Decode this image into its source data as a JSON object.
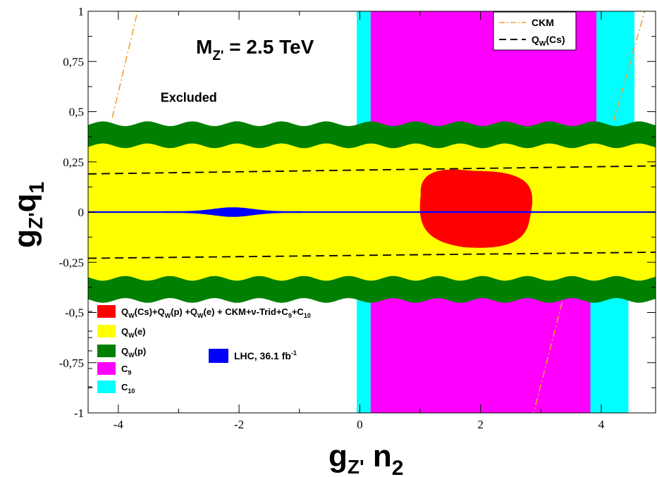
{
  "chart_data": {
    "type": "area",
    "title": "M_Z' = 2.5 TeV",
    "title_parts": {
      "main": "M",
      "sub": "Z'",
      "rest": " = 2.5 TeV"
    },
    "xlabel_parts": {
      "main": "g",
      "sub": "Z'",
      "rest": " n",
      "rest_sub": "2"
    },
    "ylabel_parts": {
      "main": "g",
      "sub": "Z'",
      "rest": "q",
      "rest_sub": "1"
    },
    "xlim": [
      -4.5,
      4.9
    ],
    "ylim": [
      -1,
      1
    ],
    "x_ticks": [
      {
        "v": -4,
        "label": "-4"
      },
      {
        "v": -2,
        "label": "-2"
      },
      {
        "v": 0,
        "label": "0"
      },
      {
        "v": 2,
        "label": "2"
      },
      {
        "v": 4,
        "label": "4"
      }
    ],
    "y_ticks": [
      {
        "v": 1,
        "label": "1"
      },
      {
        "v": 0.75,
        "label": "0,75"
      },
      {
        "v": 0.5,
        "label": "0,5"
      },
      {
        "v": 0.25,
        "label": "0,25"
      },
      {
        "v": 0,
        "label": "0"
      },
      {
        "v": -0.25,
        "label": "-0,25"
      },
      {
        "v": -0.5,
        "label": "-0,5"
      },
      {
        "v": -0.75,
        "label": "-0,75"
      },
      {
        "v": -1,
        "label": "-1"
      }
    ],
    "annotations": [
      {
        "text": "Excluded",
        "x": -3.3,
        "y": 0.55
      }
    ],
    "regions": {
      "C10": {
        "x_ranges_top": [
          [
            -0.05,
            0.18
          ],
          [
            3.92,
            4.55
          ]
        ],
        "x_ranges_bottom": [
          [
            -0.05,
            0.18
          ],
          [
            3.82,
            4.45
          ]
        ]
      },
      "C9": {
        "x_ranges_top": [
          [
            0.18,
            3.92
          ]
        ],
        "x_ranges_bottom": [
          [
            0.18,
            3.82
          ]
        ]
      },
      "Qw_p": {
        "y_range": [
          -0.44,
          0.44
        ],
        "wave_amplitude": 0.012
      },
      "Qw_e": {
        "y_range": [
          -0.33,
          0.33
        ],
        "wave_amplitude": 0.012
      },
      "combined": {
        "center": [
          1.93,
          0.005
        ],
        "half_width": 0.97,
        "half_height": 0.2
      },
      "LHC": {
        "x_range": [
          -4.5,
          4.9
        ],
        "band_halfwidth": 0.004,
        "bulge_center": -2.1,
        "bulge_halfwidth": 0.02
      }
    },
    "series": [
      {
        "name": "CKM",
        "style": "dash-dot",
        "color": "#f0a030",
        "segments": [
          [
            [
              -4.1,
              0.47
            ],
            [
              -3.68,
              1.0
            ]
          ],
          [
            [
              4.2,
              0.45
            ],
            [
              4.72,
              1.0
            ]
          ],
          [
            [
              3.35,
              -0.45
            ],
            [
              2.88,
              -1.0
            ]
          ]
        ]
      },
      {
        "name": "Q_W(Cs)",
        "style": "dashed",
        "color": "#000000",
        "segments": [
          [
            [
              -4.5,
              0.19
            ],
            [
              4.9,
              0.23
            ]
          ],
          [
            [
              -4.5,
              -0.23
            ],
            [
              4.9,
              -0.2
            ]
          ]
        ]
      }
    ],
    "legend_top": {
      "placement": "top-right",
      "entries": [
        {
          "label": "CKM",
          "style": "dash-dot",
          "color": "#f0a030"
        },
        {
          "label_main": "Q",
          "label_sub": "W",
          "label_rest": "(Cs)",
          "style": "dashed",
          "color": "#000000"
        }
      ]
    },
    "legend_bottom": {
      "placement": "bottom-left",
      "entries": [
        {
          "key": "combined",
          "color": "#ff0000",
          "label": "Q_W(Cs)+Q_W(p)  +Q_W(e) + CKM+ν-Trid+C_9+C_10"
        },
        {
          "key": "Qw_e",
          "color": "#ffff00",
          "label_main": "Q",
          "label_sub": "W",
          "label_rest": "(e)"
        },
        {
          "key": "Qw_p",
          "color": "#008000",
          "label_main": "Q",
          "label_sub": "W",
          "label_rest": "(p)"
        },
        {
          "key": "C9",
          "color": "#ff00ff",
          "label_main": "C",
          "label_sub": "9",
          "label_rest": ""
        },
        {
          "key": "C10",
          "color": "#00ffff",
          "label_main": "C",
          "label_sub": "10",
          "label_rest": ""
        }
      ]
    },
    "legend_lhc": {
      "color": "#0000ff",
      "label": "LHC,  36.1 fb",
      "label_sup": "-1"
    }
  }
}
